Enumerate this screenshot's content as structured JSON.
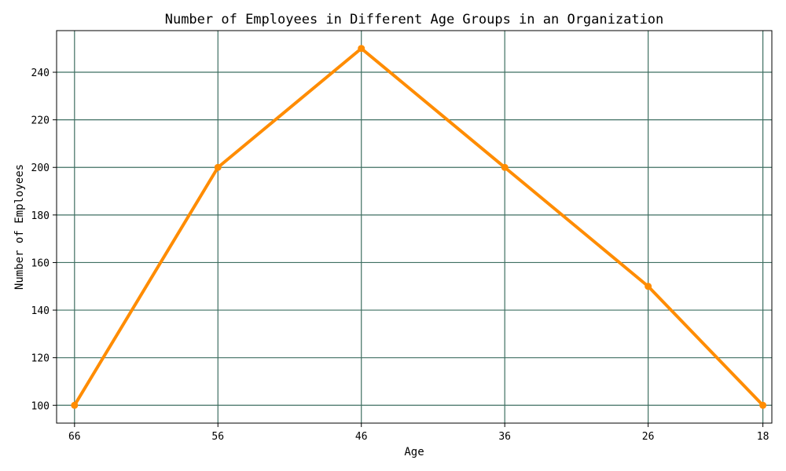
{
  "chart_data": {
    "type": "line",
    "title": "Number of Employees in Different Age Groups in an Organization",
    "xlabel": "Age",
    "ylabel": "Number of Employees",
    "categories": [
      "66",
      "56",
      "46",
      "36",
      "26",
      "18"
    ],
    "x": [
      66,
      56,
      46,
      36,
      26,
      18
    ],
    "xlim": [
      67.25,
      17.375
    ],
    "x_axis_reversed": true,
    "ylim": [
      92.5,
      257.5
    ],
    "yticks": [
      100,
      120,
      140,
      160,
      180,
      200,
      220,
      240
    ],
    "grid": true,
    "series": [
      {
        "values": [
          100,
          200,
          250,
          200,
          150,
          100
        ],
        "color": "#ff8c00",
        "marker": "circle"
      }
    ]
  }
}
